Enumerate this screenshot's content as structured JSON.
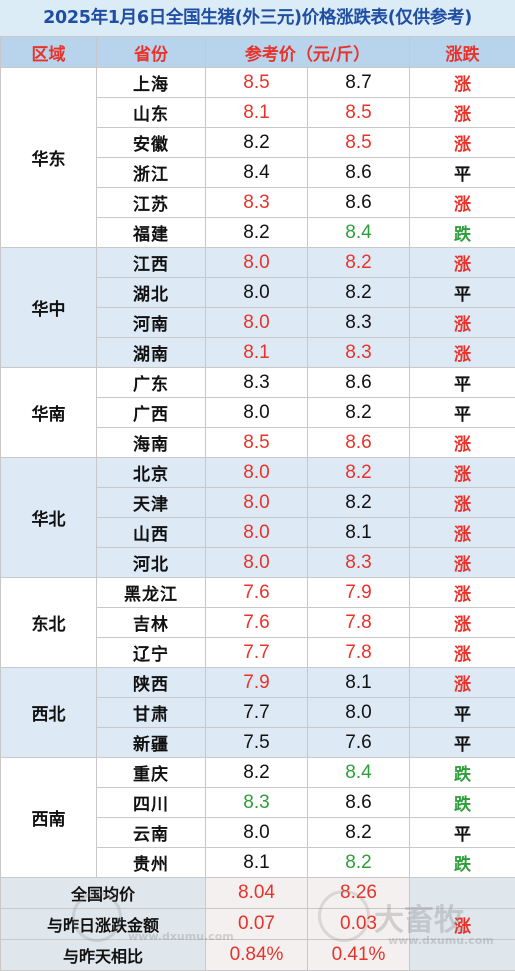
{
  "title": "2025年1月6日全国生猪(外三元)价格涨跌表(仅供参考)",
  "header": {
    "region": "区域",
    "province": "省份",
    "price": "参考价（元/斤）",
    "trend": "涨跌"
  },
  "colors": {
    "up": "#e8322a",
    "down": "#2e9e3a",
    "flat": "#111111"
  },
  "regions": [
    {
      "name": "华东",
      "rows": [
        {
          "province": "上海",
          "prev": "8.5",
          "prev_color": "red",
          "today": "8.7",
          "today_color": "black",
          "trend": "涨"
        },
        {
          "province": "山东",
          "prev": "8.1",
          "prev_color": "red",
          "today": "8.5",
          "today_color": "red",
          "trend": "涨"
        },
        {
          "province": "安徽",
          "prev": "8.2",
          "prev_color": "black",
          "today": "8.5",
          "today_color": "red",
          "trend": "涨"
        },
        {
          "province": "浙江",
          "prev": "8.4",
          "prev_color": "black",
          "today": "8.6",
          "today_color": "black",
          "trend": "平"
        },
        {
          "province": "江苏",
          "prev": "8.3",
          "prev_color": "red",
          "today": "8.6",
          "today_color": "black",
          "trend": "涨"
        },
        {
          "province": "福建",
          "prev": "8.2",
          "prev_color": "black",
          "today": "8.4",
          "today_color": "green",
          "trend": "跌"
        }
      ]
    },
    {
      "name": "华中",
      "rows": [
        {
          "province": "江西",
          "prev": "8.0",
          "prev_color": "red",
          "today": "8.2",
          "today_color": "red",
          "trend": "涨"
        },
        {
          "province": "湖北",
          "prev": "8.0",
          "prev_color": "black",
          "today": "8.2",
          "today_color": "black",
          "trend": "平"
        },
        {
          "province": "河南",
          "prev": "8.0",
          "prev_color": "red",
          "today": "8.3",
          "today_color": "black",
          "trend": "涨"
        },
        {
          "province": "湖南",
          "prev": "8.1",
          "prev_color": "red",
          "today": "8.3",
          "today_color": "red",
          "trend": "涨"
        }
      ]
    },
    {
      "name": "华南",
      "rows": [
        {
          "province": "广东",
          "prev": "8.3",
          "prev_color": "black",
          "today": "8.6",
          "today_color": "black",
          "trend": "平"
        },
        {
          "province": "广西",
          "prev": "8.0",
          "prev_color": "black",
          "today": "8.2",
          "today_color": "black",
          "trend": "平"
        },
        {
          "province": "海南",
          "prev": "8.5",
          "prev_color": "red",
          "today": "8.6",
          "today_color": "red",
          "trend": "涨"
        }
      ]
    },
    {
      "name": "华北",
      "rows": [
        {
          "province": "北京",
          "prev": "8.0",
          "prev_color": "red",
          "today": "8.2",
          "today_color": "red",
          "trend": "涨"
        },
        {
          "province": "天津",
          "prev": "8.0",
          "prev_color": "red",
          "today": "8.2",
          "today_color": "black",
          "trend": "涨"
        },
        {
          "province": "山西",
          "prev": "8.0",
          "prev_color": "red",
          "today": "8.1",
          "today_color": "black",
          "trend": "涨"
        },
        {
          "province": "河北",
          "prev": "8.0",
          "prev_color": "red",
          "today": "8.3",
          "today_color": "red",
          "trend": "涨"
        }
      ]
    },
    {
      "name": "东北",
      "rows": [
        {
          "province": "黑龙江",
          "prev": "7.6",
          "prev_color": "red",
          "today": "7.9",
          "today_color": "red",
          "trend": "涨"
        },
        {
          "province": "吉林",
          "prev": "7.6",
          "prev_color": "red",
          "today": "7.8",
          "today_color": "red",
          "trend": "涨"
        },
        {
          "province": "辽宁",
          "prev": "7.7",
          "prev_color": "red",
          "today": "7.8",
          "today_color": "red",
          "trend": "涨"
        }
      ]
    },
    {
      "name": "西北",
      "rows": [
        {
          "province": "陕西",
          "prev": "7.9",
          "prev_color": "red",
          "today": "8.1",
          "today_color": "black",
          "trend": "涨"
        },
        {
          "province": "甘肃",
          "prev": "7.7",
          "prev_color": "black",
          "today": "8.0",
          "today_color": "black",
          "trend": "平"
        },
        {
          "province": "新疆",
          "prev": "7.5",
          "prev_color": "black",
          "today": "7.6",
          "today_color": "black",
          "trend": "平"
        }
      ]
    },
    {
      "name": "西南",
      "rows": [
        {
          "province": "重庆",
          "prev": "8.2",
          "prev_color": "black",
          "today": "8.4",
          "today_color": "green",
          "trend": "跌"
        },
        {
          "province": "四川",
          "prev": "8.3",
          "prev_color": "green",
          "today": "8.6",
          "today_color": "black",
          "trend": "跌"
        },
        {
          "province": "云南",
          "prev": "8.0",
          "prev_color": "black",
          "today": "8.2",
          "today_color": "black",
          "trend": "平"
        },
        {
          "province": "贵州",
          "prev": "8.1",
          "prev_color": "black",
          "today": "8.2",
          "today_color": "green",
          "trend": "跌"
        }
      ]
    }
  ],
  "summary": [
    {
      "label": "全国均价",
      "prev": "8.04",
      "today": "8.26",
      "trend": ""
    },
    {
      "label": "与昨日涨跌金额",
      "prev": "0.07",
      "today": "0.03",
      "trend": "涨"
    },
    {
      "label": "与昨天相比",
      "prev": "0.84%",
      "today": "0.41%",
      "trend": ""
    }
  ],
  "watermark": {
    "left_url": "www.dxumu.com",
    "right_brand": "大畜牧",
    "right_url": "www.dxumu.com"
  }
}
